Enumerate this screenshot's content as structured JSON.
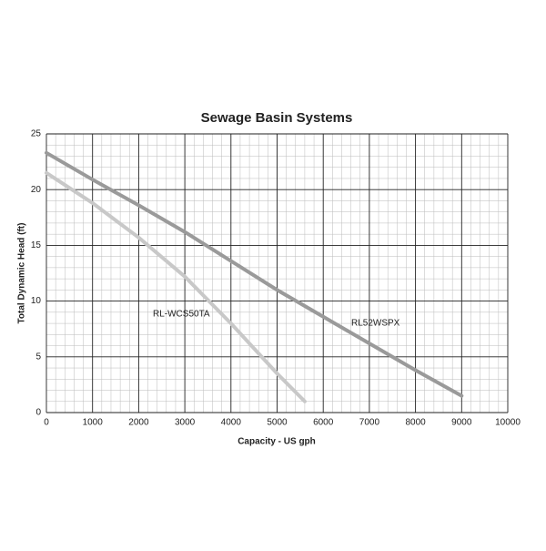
{
  "chart_data": {
    "type": "line",
    "title": "Sewage Basin Systems",
    "x_label": "Capacity - US gph",
    "y_label": "Total Dynamic Head (ft)",
    "series": [
      {
        "name": "RL52WSPX",
        "color": "#9a9a9a",
        "x": [
          0,
          1000,
          2000,
          3000,
          4000,
          5000,
          6000,
          7000,
          8000,
          9000
        ],
        "values": [
          23.3,
          20.9,
          18.6,
          16.2,
          13.6,
          11.0,
          8.6,
          6.2,
          3.8,
          1.5
        ]
      },
      {
        "name": "RL-WCS50TA",
        "color": "#c8c8c8",
        "x": [
          0,
          1000,
          2000,
          3000,
          4000,
          5000,
          5600
        ],
        "values": [
          21.5,
          18.8,
          15.7,
          12.2,
          8.0,
          3.5,
          1.0
        ]
      }
    ],
    "xlim": [
      0,
      10000
    ],
    "xticks": [
      0,
      1000,
      2000,
      3000,
      4000,
      5000,
      6000,
      7000,
      8000,
      9000,
      10000
    ],
    "ylim": [
      0,
      25
    ],
    "yticks": [
      0,
      5,
      10,
      15,
      20,
      25
    ],
    "grid": true
  }
}
